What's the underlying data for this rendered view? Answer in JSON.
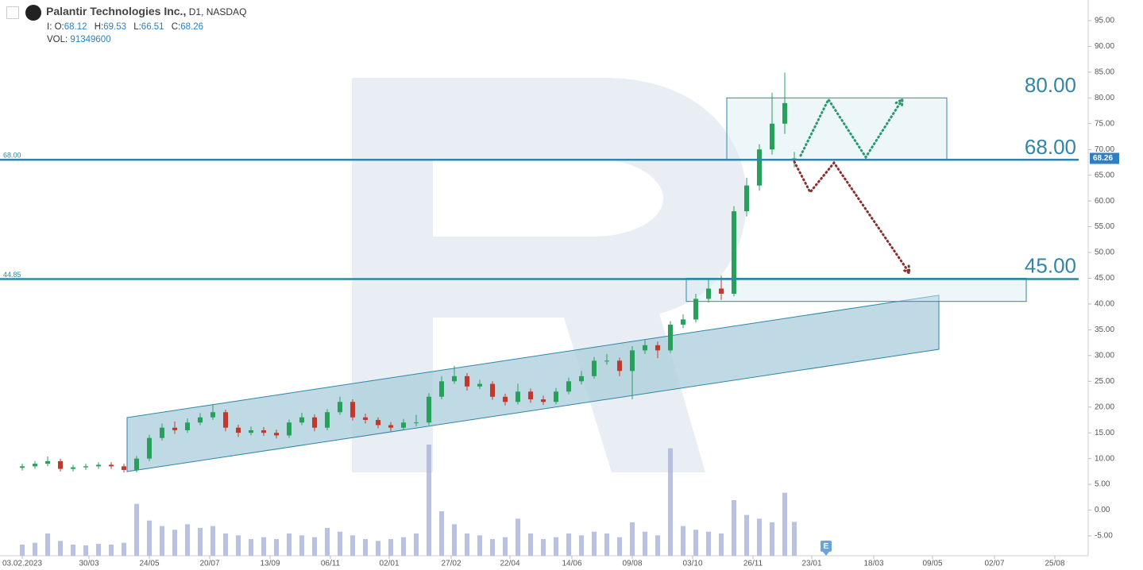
{
  "chart_data": {
    "type": "candlestick",
    "title": "Palantir Technologies Inc.,",
    "timeframe": "D1,",
    "exchange": "NASDAQ",
    "ohlc_labels": {
      "i": "I:",
      "o": "O:",
      "h": "H:",
      "l": "L:",
      "c": "C:",
      "vol": "VOL:"
    },
    "x": [
      0,
      8,
      16,
      24,
      32,
      40,
      48,
      56,
      64,
      72,
      80,
      88,
      96,
      104,
      112,
      120,
      128,
      136,
      144,
      152,
      160,
      168,
      176,
      184,
      192,
      200,
      208,
      216,
      224,
      232,
      240,
      248,
      256,
      264,
      272,
      280,
      288,
      296,
      304,
      312,
      320,
      328,
      336,
      344,
      352,
      360,
      368,
      376,
      384,
      392,
      400,
      408,
      416,
      424,
      432,
      440,
      448,
      456,
      464,
      472,
      480,
      486
    ],
    "open": [
      8.2,
      8.5,
      9,
      9.5,
      8,
      8.3,
      8.5,
      8.8,
      8.5,
      7.8,
      10,
      14,
      16,
      15.5,
      17,
      18,
      19,
      16,
      15,
      15.5,
      15,
      14.5,
      17,
      18,
      16,
      19,
      21,
      18,
      17.5,
      16.5,
      16,
      17,
      17,
      22,
      25,
      26,
      24,
      24.5,
      22,
      21,
      23,
      21.5,
      21,
      23,
      25,
      26,
      29,
      29,
      27,
      31,
      32,
      31,
      36,
      37,
      41,
      43,
      42,
      58,
      63,
      70,
      75,
      68.12
    ],
    "high": [
      9,
      9.5,
      10.4,
      10,
      8.8,
      9,
      9.3,
      9.3,
      9,
      10.5,
      14.6,
      16.8,
      17.2,
      17.8,
      18.8,
      20.5,
      19.5,
      16.6,
      16.2,
      16.1,
      15.6,
      17.6,
      18.9,
      18.6,
      19.6,
      22,
      21.5,
      18.7,
      18,
      17.1,
      17.7,
      18.5,
      22.7,
      26,
      28,
      26.6,
      25.3,
      25,
      22.6,
      24.5,
      23.6,
      22.2,
      23.7,
      25.7,
      27,
      29.7,
      30.3,
      29.6,
      31.8,
      33,
      32.7,
      36.7,
      38,
      42,
      45,
      45.5,
      59,
      64.5,
      71,
      81,
      84.9,
      69.53
    ],
    "low": [
      7.7,
      8,
      8.5,
      7.5,
      7.5,
      7.8,
      8,
      8,
      7.3,
      7.3,
      9.5,
      13.5,
      14.8,
      15,
      16.5,
      17.5,
      15.3,
      14.2,
      14.5,
      14.4,
      13.9,
      14,
      16.5,
      15.3,
      15.5,
      18.5,
      17.4,
      16.8,
      15.9,
      15.3,
      15.5,
      16.3,
      16.5,
      21.5,
      24.5,
      23.2,
      23.5,
      21.4,
      20.3,
      20.5,
      20.8,
      20.4,
      20.5,
      22.5,
      24.4,
      25.5,
      28.2,
      26,
      21.5,
      30.3,
      29.5,
      30.5,
      35.3,
      36.4,
      40.3,
      40.8,
      41.5,
      57,
      62,
      69,
      73,
      66.51
    ],
    "close": [
      8.5,
      9,
      9.5,
      8,
      8.3,
      8.5,
      8.8,
      8.5,
      7.8,
      10,
      14,
      16,
      15.5,
      17,
      18,
      19,
      16,
      15,
      15.5,
      15,
      14.5,
      17,
      18,
      16,
      19,
      21,
      18,
      17.5,
      16.5,
      16,
      17,
      17,
      22,
      25,
      26,
      24,
      24.5,
      22,
      21,
      23,
      21.5,
      21,
      23,
      25,
      26,
      29,
      29,
      27,
      31,
      32,
      31,
      36,
      37,
      41,
      43,
      42,
      58,
      63,
      70,
      75,
      79,
      68.26
    ],
    "volume": [
      30000000,
      35000000,
      60000000,
      40000000,
      30000000,
      28000000,
      32000000,
      30000000,
      35000000,
      140000000,
      95000000,
      80000000,
      70000000,
      85000000,
      75000000,
      80000000,
      60000000,
      55000000,
      45000000,
      50000000,
      45000000,
      60000000,
      55000000,
      50000000,
      75000000,
      65000000,
      55000000,
      45000000,
      40000000,
      45000000,
      50000000,
      60000000,
      300000000,
      120000000,
      85000000,
      60000000,
      55000000,
      45000000,
      50000000,
      100000000,
      60000000,
      45000000,
      50000000,
      60000000,
      55000000,
      65000000,
      60000000,
      50000000,
      90000000,
      65000000,
      55000000,
      290000000,
      80000000,
      70000000,
      65000000,
      60000000,
      150000000,
      110000000,
      100000000,
      90000000,
      170000000,
      91349600
    ],
    "xlim": [
      -14,
      671
    ],
    "xticks": [
      {
        "value": 0,
        "label": "03.02.2023"
      },
      {
        "value": 42,
        "label": "30/03"
      },
      {
        "value": 80,
        "label": "24/05"
      },
      {
        "value": 118,
        "label": "20/07"
      },
      {
        "value": 156,
        "label": "13/09"
      },
      {
        "value": 194,
        "label": "06/11"
      },
      {
        "value": 231,
        "label": "02/01"
      },
      {
        "value": 270,
        "label": "27/02"
      },
      {
        "value": 307,
        "label": "22/04"
      },
      {
        "value": 346,
        "label": "14/06"
      },
      {
        "value": 384,
        "label": "09/08"
      },
      {
        "value": 422,
        "label": "03/10"
      },
      {
        "value": 460,
        "label": "26/11"
      },
      {
        "value": 497,
        "label": "23/01"
      },
      {
        "value": 536,
        "label": "18/03"
      },
      {
        "value": 573,
        "label": "09/05"
      },
      {
        "value": 612,
        "label": "02/07"
      },
      {
        "value": 650,
        "label": "25/08"
      }
    ],
    "ylim": [
      -8.85,
      99
    ],
    "yticks": [
      {
        "value": -5,
        "label": "-5.00"
      },
      {
        "value": 0,
        "label": "0.00"
      },
      {
        "value": 5,
        "label": "5.00"
      },
      {
        "value": 10,
        "label": "10.00"
      },
      {
        "value": 15,
        "label": "15.00"
      },
      {
        "value": 20,
        "label": "20.00"
      },
      {
        "value": 25,
        "label": "25.00"
      },
      {
        "value": 30,
        "label": "30.00"
      },
      {
        "value": 35,
        "label": "35.00"
      },
      {
        "value": 40,
        "label": "40.00"
      },
      {
        "value": 45,
        "label": "45.00"
      },
      {
        "value": 50,
        "label": "50.00"
      },
      {
        "value": 55,
        "label": "55.00"
      },
      {
        "value": 60,
        "label": "60.00"
      },
      {
        "value": 65,
        "label": "65.00"
      },
      {
        "value": 70,
        "label": "70.00"
      },
      {
        "value": 75,
        "label": "75.00"
      },
      {
        "value": 80,
        "label": "80.00"
      },
      {
        "value": 85,
        "label": "85.00"
      },
      {
        "value": 90,
        "label": "90.00"
      },
      {
        "value": 95,
        "label": "95.00"
      }
    ],
    "colors": {
      "up": "#27a05c",
      "down": "#c0392b",
      "volume": "#a9b3dc",
      "level": "#2f86a8",
      "tag": "#2f7fc1"
    },
    "levels": [
      {
        "value": 68,
        "label": "68.00"
      },
      {
        "value": 44.85,
        "label": "44.85"
      }
    ],
    "level_tags": [
      {
        "value": 80,
        "label": "80.00"
      },
      {
        "value": 68,
        "label": "68.00"
      },
      {
        "value": 45,
        "label": "45.00"
      }
    ],
    "zones": [
      {
        "x": [
          443.5,
          582
        ],
        "y": [
          68,
          80
        ]
      },
      {
        "x": [
          418,
          632
        ],
        "y": [
          40.5,
          45
        ]
      }
    ],
    "channel": {
      "x": [
        66,
        577
      ],
      "upper": [
        17.96,
        41.7
      ],
      "lower": [
        7.48,
        31.2
      ]
    },
    "forecasts": [
      {
        "color": "#2a9a6e",
        "x": [
          490,
          507.5,
          531,
          554
        ],
        "y": [
          68.8,
          79.7,
          68.5,
          79.7
        ]
      },
      {
        "color": "#8b2e2e",
        "x": [
          486,
          496,
          511,
          558.5
        ],
        "y": [
          67.6,
          61.7,
          67.4,
          46
        ]
      }
    ],
    "earnings": {
      "x": 506,
      "label": "E"
    }
  }
}
